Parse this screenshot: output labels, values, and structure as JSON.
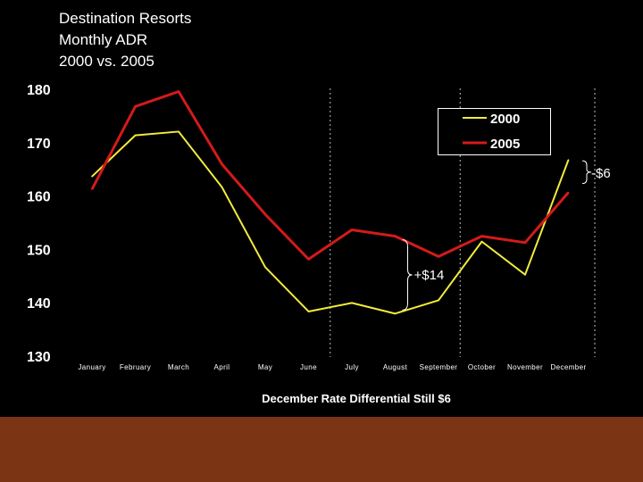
{
  "page": {
    "title_lines": [
      "Destination Resorts",
      "Monthly ADR",
      "2000 vs. 2005"
    ],
    "footer_color": "#7b3514",
    "background": "#000000"
  },
  "chart_data": {
    "type": "line",
    "categories": [
      "January",
      "February",
      "March",
      "April",
      "May",
      "June",
      "July",
      "August",
      "September",
      "October",
      "November",
      "December"
    ],
    "series": [
      {
        "name": "2000",
        "color": "#f2ec3c",
        "values": [
          163.5,
          171.2,
          171.9,
          161.5,
          146.5,
          138.2,
          139.8,
          137.8,
          140.3,
          151.3,
          145.1,
          166.6
        ]
      },
      {
        "name": "2005",
        "color": "#d41a1a",
        "values": [
          161.1,
          176.6,
          179.4,
          165.8,
          156.4,
          148.0,
          153.5,
          152.3,
          148.5,
          152.3,
          151.1,
          160.5
        ]
      }
    ],
    "ylim": [
      130,
      180
    ],
    "yticks": [
      "130",
      "140",
      "150",
      "160",
      "170",
      "180"
    ],
    "xlabel": "December Rate Differential Still $6",
    "ylabel": "",
    "legend_position": "top-right",
    "grid": false,
    "annotations": [
      {
        "text": "+$14",
        "month_index": 7
      },
      {
        "text": "-$6",
        "month_index": 11
      }
    ]
  }
}
